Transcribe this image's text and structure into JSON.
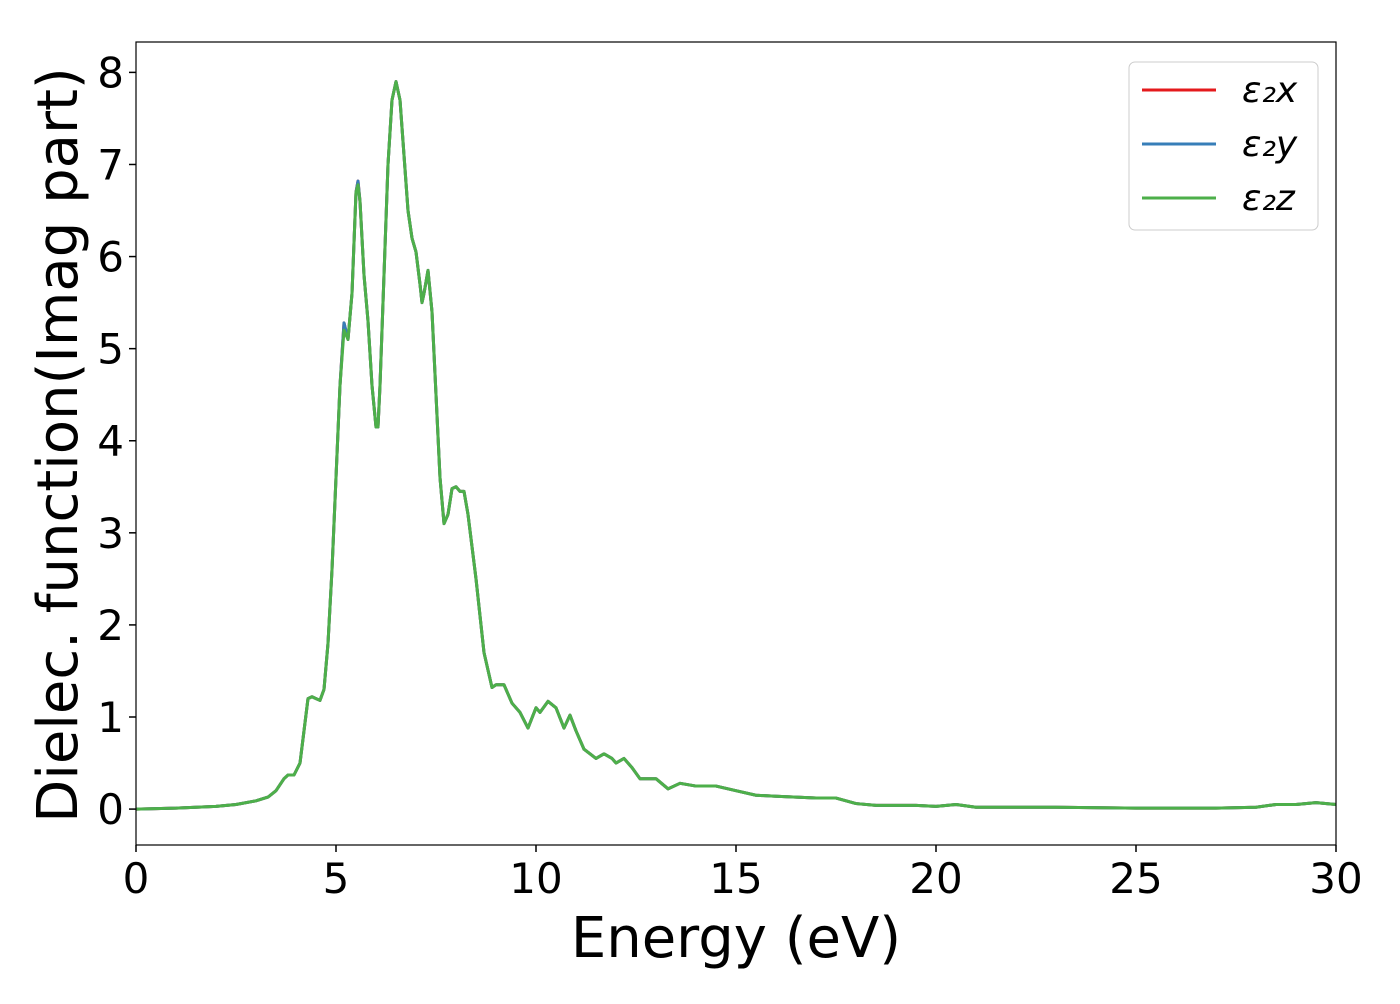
{
  "chart_data": {
    "type": "line",
    "xlabel": "Energy (eV)",
    "ylabel": "Dielec. function(Imag part)",
    "x": [
      0,
      1,
      2,
      2.5,
      3,
      3.3,
      3.5,
      3.7,
      3.8,
      3.95,
      4.1,
      4.2,
      4.3,
      4.4,
      4.5,
      4.6,
      4.7,
      4.8,
      4.9,
      5,
      5.1,
      5.2,
      5.3,
      5.4,
      5.5,
      5.55,
      5.6,
      5.7,
      5.8,
      5.9,
      6,
      6.05,
      6.1,
      6.2,
      6.3,
      6.4,
      6.5,
      6.6,
      6.7,
      6.8,
      6.9,
      7,
      7.1,
      7.15,
      7.2,
      7.3,
      7.4,
      7.5,
      7.6,
      7.7,
      7.8,
      7.9,
      8,
      8.1,
      8.2,
      8.3,
      8.5,
      8.7,
      8.9,
      9,
      9.2,
      9.4,
      9.6,
      9.8,
      10,
      10.1,
      10.3,
      10.5,
      10.7,
      10.85,
      11,
      11.2,
      11.5,
      11.7,
      11.9,
      12,
      12.2,
      12.4,
      12.6,
      13,
      13.3,
      13.6,
      14,
      14.5,
      15,
      15.5,
      16,
      17,
      17.5,
      18,
      18.5,
      19.5,
      20,
      20.5,
      21,
      23,
      25,
      27,
      28,
      28.5,
      29,
      29.5,
      30
    ],
    "series": [
      {
        "name": "ε₂x",
        "color": "#e41a1c",
        "values": [
          0,
          0.01,
          0.03,
          0.05,
          0.09,
          0.13,
          0.2,
          0.33,
          0.37,
          0.37,
          0.5,
          0.85,
          1.2,
          1.22,
          1.2,
          1.18,
          1.3,
          1.8,
          2.6,
          3.6,
          4.6,
          5.28,
          5.1,
          5.6,
          6.7,
          6.82,
          6.6,
          5.8,
          5.3,
          4.6,
          4.15,
          4.15,
          4.6,
          5.8,
          7,
          7.7,
          7.9,
          7.7,
          7.1,
          6.5,
          6.2,
          6.05,
          5.7,
          5.5,
          5.6,
          5.85,
          5.4,
          4.5,
          3.6,
          3.1,
          3.2,
          3.48,
          3.5,
          3.45,
          3.45,
          3.2,
          2.5,
          1.7,
          1.32,
          1.35,
          1.35,
          1.15,
          1.05,
          0.88,
          1.1,
          1.05,
          1.17,
          1.1,
          0.88,
          1.02,
          0.85,
          0.65,
          0.55,
          0.6,
          0.55,
          0.5,
          0.55,
          0.45,
          0.33,
          0.33,
          0.22,
          0.28,
          0.25,
          0.25,
          0.2,
          0.15,
          0.14,
          0.12,
          0.12,
          0.06,
          0.04,
          0.04,
          0.03,
          0.05,
          0.02,
          0.02,
          0.01,
          0.01,
          0.02,
          0.05,
          0.05,
          0.07,
          0.05
        ]
      },
      {
        "name": "ε₂y",
        "color": "#377eb8",
        "values": [
          0,
          0.01,
          0.03,
          0.05,
          0.09,
          0.13,
          0.2,
          0.33,
          0.37,
          0.37,
          0.5,
          0.85,
          1.2,
          1.22,
          1.2,
          1.18,
          1.3,
          1.8,
          2.6,
          3.6,
          4.6,
          5.28,
          5.1,
          5.6,
          6.7,
          6.82,
          6.6,
          5.8,
          5.3,
          4.6,
          4.15,
          4.15,
          4.6,
          5.8,
          7,
          7.7,
          7.9,
          7.7,
          7.1,
          6.5,
          6.2,
          6.05,
          5.7,
          5.5,
          5.6,
          5.85,
          5.4,
          4.5,
          3.6,
          3.1,
          3.2,
          3.48,
          3.5,
          3.45,
          3.45,
          3.2,
          2.5,
          1.7,
          1.32,
          1.35,
          1.35,
          1.15,
          1.05,
          0.88,
          1.1,
          1.05,
          1.17,
          1.1,
          0.88,
          1.02,
          0.85,
          0.65,
          0.55,
          0.6,
          0.55,
          0.5,
          0.55,
          0.45,
          0.33,
          0.33,
          0.22,
          0.28,
          0.25,
          0.25,
          0.2,
          0.15,
          0.14,
          0.12,
          0.12,
          0.06,
          0.04,
          0.04,
          0.03,
          0.05,
          0.02,
          0.02,
          0.01,
          0.01,
          0.02,
          0.05,
          0.05,
          0.07,
          0.05
        ]
      },
      {
        "name": "ε₂z",
        "color": "#4daf4a",
        "values": [
          0,
          0.01,
          0.03,
          0.05,
          0.09,
          0.13,
          0.2,
          0.33,
          0.37,
          0.37,
          0.5,
          0.85,
          1.2,
          1.22,
          1.2,
          1.18,
          1.3,
          1.8,
          2.6,
          3.6,
          4.6,
          5.2,
          5.1,
          5.6,
          6.7,
          6.78,
          6.6,
          5.8,
          5.3,
          4.6,
          4.15,
          4.15,
          4.6,
          5.8,
          7,
          7.7,
          7.9,
          7.7,
          7.1,
          6.5,
          6.2,
          6.05,
          5.7,
          5.5,
          5.6,
          5.85,
          5.4,
          4.5,
          3.6,
          3.1,
          3.2,
          3.48,
          3.5,
          3.45,
          3.45,
          3.2,
          2.5,
          1.7,
          1.32,
          1.35,
          1.35,
          1.15,
          1.05,
          0.88,
          1.1,
          1.05,
          1.17,
          1.1,
          0.88,
          1.02,
          0.85,
          0.65,
          0.55,
          0.6,
          0.55,
          0.5,
          0.55,
          0.45,
          0.33,
          0.33,
          0.22,
          0.28,
          0.25,
          0.25,
          0.2,
          0.15,
          0.14,
          0.12,
          0.12,
          0.06,
          0.04,
          0.04,
          0.03,
          0.05,
          0.02,
          0.02,
          0.01,
          0.01,
          0.02,
          0.05,
          0.05,
          0.07,
          0.05
        ]
      }
    ],
    "xlim": [
      0,
      30
    ],
    "xticks": [
      0,
      5,
      10,
      15,
      20,
      25,
      30
    ],
    "ylim": [
      -0.39,
      8.33
    ],
    "yticks": [
      0,
      1,
      2,
      3,
      4,
      5,
      6,
      7,
      8
    ],
    "grid": false,
    "legend": "upper right"
  }
}
